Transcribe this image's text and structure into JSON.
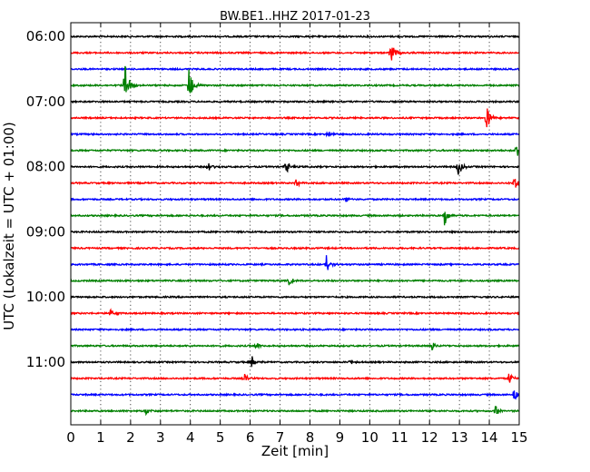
{
  "chart_data": {
    "type": "line",
    "title": "BW.BE1..HHZ 2017-01-23",
    "xlabel": "Zeit  [min]",
    "ylabel": "UTC (Lokalzeit = UTC + 01:00)",
    "xlim": [
      0,
      15
    ],
    "xticks": [
      "0",
      "1",
      "2",
      "3",
      "4",
      "5",
      "6",
      "7",
      "8",
      "9",
      "10",
      "11",
      "12",
      "13",
      "14",
      "15"
    ],
    "yticks": [
      "06:00",
      "07:00",
      "08:00",
      "09:00",
      "10:00",
      "11:00"
    ],
    "grid": "vertical dotted",
    "trace_colors": [
      "#000000",
      "#ff0000",
      "#0000ff",
      "#008000"
    ],
    "traces": [
      {
        "start": "06:00",
        "color": "#000000",
        "events": []
      },
      {
        "start": "06:15",
        "color": "#ff0000",
        "events": [
          {
            "t": 10.7,
            "amp": 0.6
          }
        ]
      },
      {
        "start": "06:30",
        "color": "#0000ff",
        "events": []
      },
      {
        "start": "06:45",
        "color": "#008000",
        "events": [
          {
            "t": 1.8,
            "amp": 1.0
          },
          {
            "t": 3.95,
            "amp": 0.8
          }
        ]
      },
      {
        "start": "07:00",
        "color": "#000000",
        "events": []
      },
      {
        "start": "07:15",
        "color": "#ff0000",
        "events": [
          {
            "t": 13.9,
            "amp": 0.55
          }
        ]
      },
      {
        "start": "07:30",
        "color": "#0000ff",
        "events": [
          {
            "t": 8.6,
            "amp": 0.2
          }
        ]
      },
      {
        "start": "07:45",
        "color": "#008000",
        "events": [
          {
            "t": 14.9,
            "amp": 0.4
          }
        ]
      },
      {
        "start": "08:00",
        "color": "#000000",
        "events": [
          {
            "t": 4.6,
            "amp": 0.25
          },
          {
            "t": 7.2,
            "amp": 0.3
          },
          {
            "t": 12.95,
            "amp": 0.4
          }
        ]
      },
      {
        "start": "08:15",
        "color": "#ff0000",
        "events": [
          {
            "t": 7.5,
            "amp": 0.25
          },
          {
            "t": 14.8,
            "amp": 0.45
          }
        ]
      },
      {
        "start": "08:30",
        "color": "#0000ff",
        "events": [
          {
            "t": 9.2,
            "amp": 0.15
          }
        ]
      },
      {
        "start": "08:45",
        "color": "#008000",
        "events": [
          {
            "t": 12.5,
            "amp": 0.45
          }
        ]
      },
      {
        "start": "09:00",
        "color": "#000000",
        "events": []
      },
      {
        "start": "09:15",
        "color": "#ff0000",
        "events": []
      },
      {
        "start": "09:30",
        "color": "#0000ff",
        "events": [
          {
            "t": 8.55,
            "amp": 0.4
          }
        ]
      },
      {
        "start": "09:45",
        "color": "#008000",
        "events": [
          {
            "t": 7.3,
            "amp": 0.2
          }
        ]
      },
      {
        "start": "10:00",
        "color": "#000000",
        "events": []
      },
      {
        "start": "10:15",
        "color": "#ff0000",
        "events": [
          {
            "t": 1.3,
            "amp": 0.2
          }
        ]
      },
      {
        "start": "10:30",
        "color": "#0000ff",
        "events": []
      },
      {
        "start": "10:45",
        "color": "#008000",
        "events": [
          {
            "t": 6.2,
            "amp": 0.2
          },
          {
            "t": 12.05,
            "amp": 0.25
          }
        ]
      },
      {
        "start": "11:00",
        "color": "#000000",
        "events": [
          {
            "t": 6.05,
            "amp": 0.3
          },
          {
            "t": 9.3,
            "amp": 0.2
          }
        ]
      },
      {
        "start": "11:15",
        "color": "#ff0000",
        "events": [
          {
            "t": 5.8,
            "amp": 0.2
          },
          {
            "t": 14.65,
            "amp": 0.3
          }
        ]
      },
      {
        "start": "11:30",
        "color": "#0000ff",
        "events": [
          {
            "t": 14.8,
            "amp": 0.35
          }
        ]
      },
      {
        "start": "11:45",
        "color": "#008000",
        "events": [
          {
            "t": 2.5,
            "amp": 0.2
          },
          {
            "t": 14.2,
            "amp": 0.25
          }
        ]
      }
    ]
  }
}
